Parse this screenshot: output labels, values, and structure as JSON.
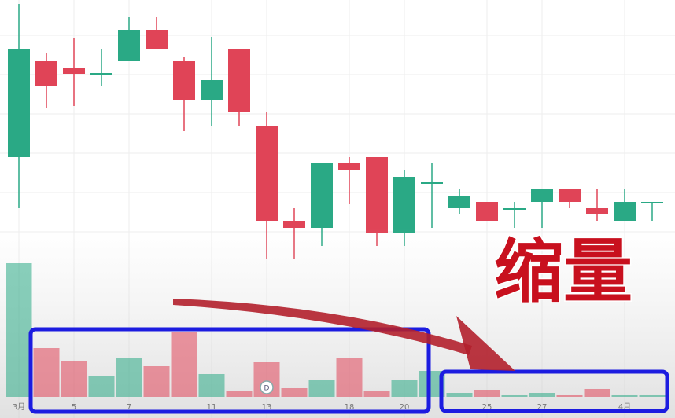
{
  "chart_data": {
    "type": "candlestick",
    "categories": [
      "3月",
      null,
      "5",
      null,
      "7",
      null,
      null,
      "11",
      null,
      "13",
      null,
      null,
      "18",
      null,
      "20",
      null,
      null,
      "25",
      null,
      "27",
      null,
      null,
      "4月",
      null
    ],
    "series": {
      "open": [
        140,
        262,
        253,
        245,
        262,
        302,
        262,
        213,
        278,
        180,
        59,
        50,
        132,
        140,
        43,
        106,
        75,
        83,
        73,
        83,
        99,
        75,
        59,
        82
      ],
      "close": [
        278,
        230,
        246,
        247,
        302,
        278,
        213,
        238,
        197,
        59,
        50,
        132,
        124,
        43,
        115,
        108,
        91,
        59,
        75,
        99,
        83,
        67,
        83,
        83
      ],
      "high": [
        335,
        272,
        292,
        278,
        318,
        318,
        268,
        293,
        278,
        197,
        75,
        132,
        140,
        140,
        124,
        132,
        99,
        83,
        83,
        99,
        99,
        99,
        99,
        83
      ],
      "low": [
        75,
        203,
        205,
        230,
        262,
        278,
        173,
        180,
        180,
        10,
        10,
        27,
        80,
        27,
        27,
        50,
        67,
        59,
        50,
        50,
        75,
        59,
        59,
        59
      ]
    },
    "volume": [
      170,
      62,
      46,
      27,
      49,
      39,
      82,
      29,
      8,
      44,
      11,
      22,
      50,
      8,
      21,
      33,
      5,
      9,
      2,
      5,
      2,
      10,
      2,
      2
    ],
    "ylim": [
      0,
      340
    ],
    "volume_ylim": [
      0,
      170
    ],
    "up_color": "#2aa985",
    "down_color": "#e04457",
    "annotation": "缩量",
    "marker": "D"
  }
}
